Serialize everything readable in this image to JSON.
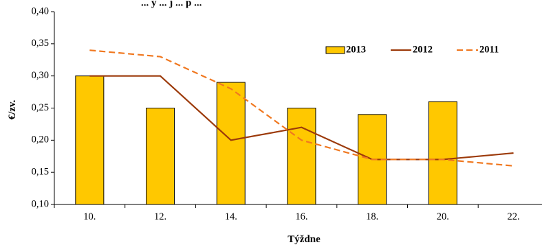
{
  "chart_data": {
    "type": "bar",
    "title_partial": "... y ... j ... p ...",
    "xlabel": "Týždne",
    "ylabel": "€/zv.",
    "ylim": [
      0.1,
      0.4
    ],
    "ytick_step": 0.05,
    "categories": [
      "10.",
      "12.",
      "14.",
      "16.",
      "18.",
      "20.",
      "22."
    ],
    "series": [
      {
        "name": "2013",
        "kind": "bar",
        "color": "#FFC800",
        "values": [
          0.3,
          0.25,
          0.29,
          0.25,
          0.24,
          0.26,
          null
        ]
      },
      {
        "name": "2012",
        "kind": "line",
        "color": "#9C3A0A",
        "values": [
          0.3,
          0.3,
          0.2,
          0.22,
          0.17,
          0.17,
          0.18
        ]
      },
      {
        "name": "2011",
        "kind": "dashed-line",
        "color": "#F07820",
        "values": [
          0.34,
          0.33,
          0.28,
          0.2,
          0.17,
          0.17,
          0.16
        ]
      }
    ],
    "legend_position": "top-right",
    "grid": false
  }
}
